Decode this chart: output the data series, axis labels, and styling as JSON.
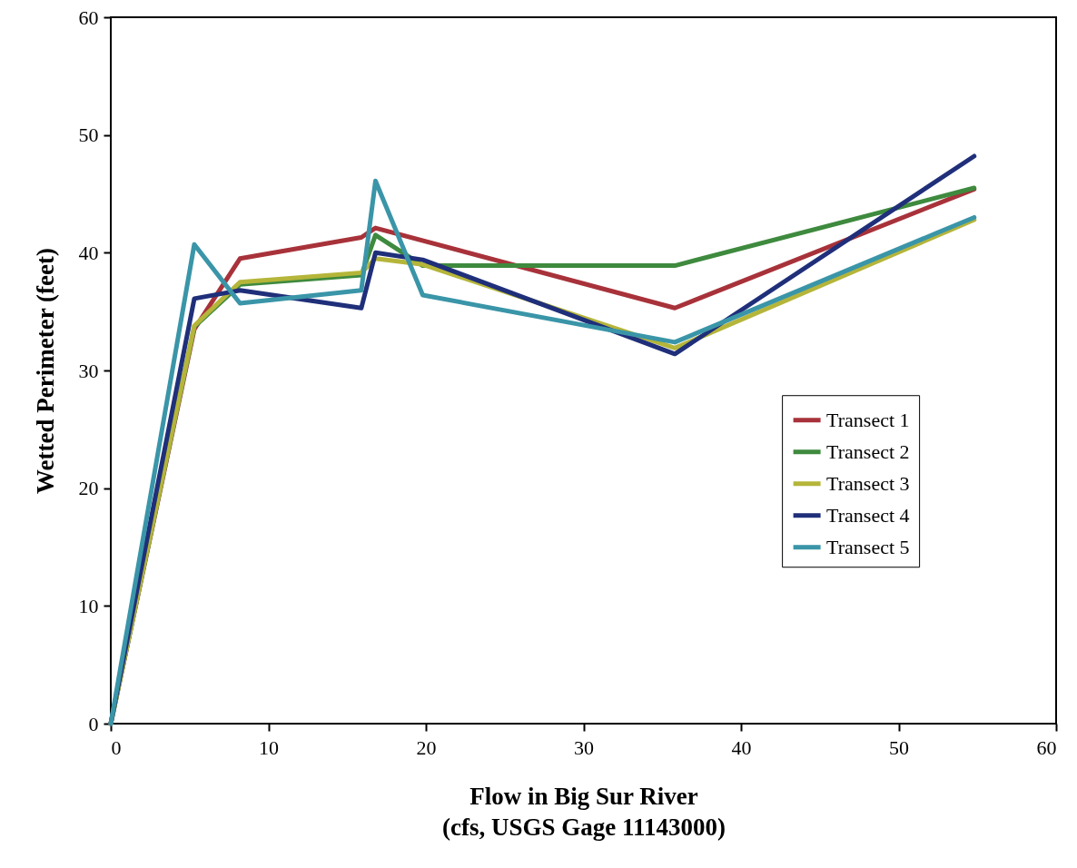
{
  "chart_data": {
    "type": "line",
    "xlabel": "Flow in Big Sur River\n(cfs, USGS Gage 11143000)",
    "ylabel": "Wetted Perimeter (feet)",
    "xlim": [
      0,
      60
    ],
    "xticks": [
      0,
      10,
      20,
      30,
      40,
      50,
      60
    ],
    "ylim": [
      0,
      60
    ],
    "yticks": [
      0,
      10,
      20,
      30,
      40,
      50,
      60
    ],
    "grid": false,
    "legend": "right",
    "marker": "none",
    "line_style": "solid",
    "series": [
      {
        "name": "Transect 1",
        "color": "#a8323a",
        "x": [
          0,
          5.3,
          8.2,
          15.9,
          16.8,
          35.8,
          54.8
        ],
        "values": [
          0,
          33.5,
          39.5,
          41.3,
          42.1,
          35.3,
          45.4
        ]
      },
      {
        "name": "Transect 2",
        "color": "#3e8a3e",
        "x": [
          0,
          5.3,
          8.2,
          15.9,
          16.8,
          19.8,
          35.8,
          54.8
        ],
        "values": [
          0,
          33.7,
          37.3,
          38.1,
          41.5,
          38.9,
          38.9,
          45.5
        ]
      },
      {
        "name": "Transect 3",
        "color": "#b5b53a",
        "x": [
          0,
          5.3,
          8.2,
          15.9,
          16.8,
          19.8,
          35.8,
          54.8
        ],
        "values": [
          0,
          33.8,
          37.5,
          38.3,
          39.5,
          39.0,
          31.9,
          42.8
        ]
      },
      {
        "name": "Transect 4",
        "color": "#1f2f7a",
        "x": [
          0,
          5.3,
          8.2,
          15.9,
          16.8,
          19.8,
          35.8,
          54.8
        ],
        "values": [
          0,
          36.1,
          36.8,
          35.3,
          40.0,
          39.4,
          31.4,
          48.2
        ]
      },
      {
        "name": "Transect 5",
        "color": "#3a95a8",
        "x": [
          0,
          5.3,
          8.2,
          15.9,
          16.8,
          19.8,
          35.8,
          54.8
        ],
        "values": [
          0,
          40.7,
          35.7,
          36.8,
          46.1,
          36.4,
          32.4,
          43.0
        ]
      }
    ]
  }
}
